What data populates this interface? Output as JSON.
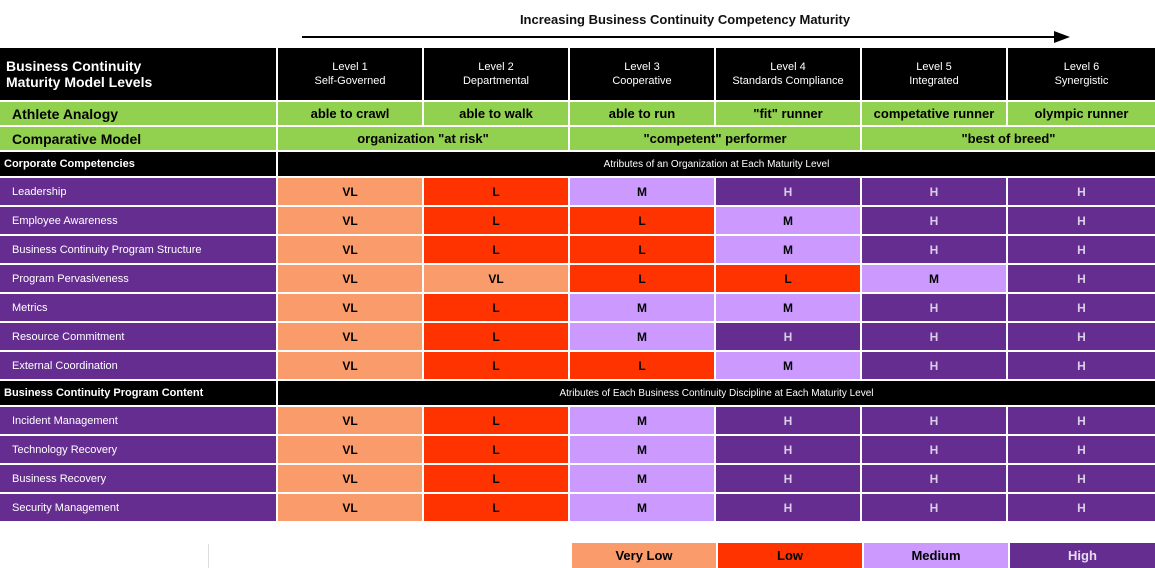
{
  "header": {
    "title": "Increasing Business Continuity Competency Maturity"
  },
  "colors": {
    "VL": "#fa9b6b",
    "L": "#ff3300",
    "M": "#cc99ff",
    "H": "#662d91",
    "green": "#92d050",
    "black": "#000000"
  },
  "table": {
    "corner_line1": "Business Continuity",
    "corner_line2": "Maturity Model Levels",
    "levels": [
      {
        "name": "Level 1",
        "sub": "Self-Governed"
      },
      {
        "name": "Level 2",
        "sub": "Departmental"
      },
      {
        "name": "Level 3",
        "sub": "Cooperative"
      },
      {
        "name": "Level 4",
        "sub": "Standards Compliance"
      },
      {
        "name": "Level 5",
        "sub": "Integrated"
      },
      {
        "name": "Level 6",
        "sub": "Synergistic"
      }
    ],
    "athlete": {
      "label": "Athlete Analogy",
      "values": [
        "able to crawl",
        "able to walk",
        "able to run",
        "\"fit\" runner",
        "competative runner",
        "olympic runner"
      ]
    },
    "comparative": {
      "label": "Comparative Model",
      "groups": [
        "organization \"at risk\"",
        "\"competent\" performer",
        "\"best of breed\""
      ]
    },
    "sections": [
      {
        "label": "Corporate Competencies",
        "caption": "Atributes of an Organization at Each Maturity Level",
        "rows": [
          {
            "label": "Leadership",
            "values": [
              "VL",
              "L",
              "M",
              "H",
              "H",
              "H"
            ]
          },
          {
            "label": "Employee Awareness",
            "values": [
              "VL",
              "L",
              "L",
              "M",
              "H",
              "H"
            ]
          },
          {
            "label": "Business Continuity Program Structure",
            "values": [
              "VL",
              "L",
              "L",
              "M",
              "H",
              "H"
            ]
          },
          {
            "label": "Program Pervasiveness",
            "values": [
              "VL",
              "VL",
              "L",
              "L",
              "M",
              "H"
            ]
          },
          {
            "label": "Metrics",
            "values": [
              "VL",
              "L",
              "M",
              "M",
              "H",
              "H"
            ]
          },
          {
            "label": "Resource Commitment",
            "values": [
              "VL",
              "L",
              "M",
              "H",
              "H",
              "H"
            ]
          },
          {
            "label": "External Coordination",
            "values": [
              "VL",
              "L",
              "L",
              "M",
              "H",
              "H"
            ]
          }
        ]
      },
      {
        "label": "Business Continuity Program Content",
        "caption": "Atributes of Each Business Continuity Discipline at Each Maturity Level",
        "rows": [
          {
            "label": "Incident Management",
            "values": [
              "VL",
              "L",
              "M",
              "H",
              "H",
              "H"
            ]
          },
          {
            "label": "Technology Recovery",
            "values": [
              "VL",
              "L",
              "M",
              "H",
              "H",
              "H"
            ]
          },
          {
            "label": "Business Recovery",
            "values": [
              "VL",
              "L",
              "M",
              "H",
              "H",
              "H"
            ]
          },
          {
            "label": "Security Management",
            "values": [
              "VL",
              "L",
              "M",
              "H",
              "H",
              "H"
            ]
          }
        ]
      }
    ]
  },
  "legend": {
    "very_low": "Very Low",
    "low": "Low",
    "medium": "Medium",
    "high": "High"
  }
}
